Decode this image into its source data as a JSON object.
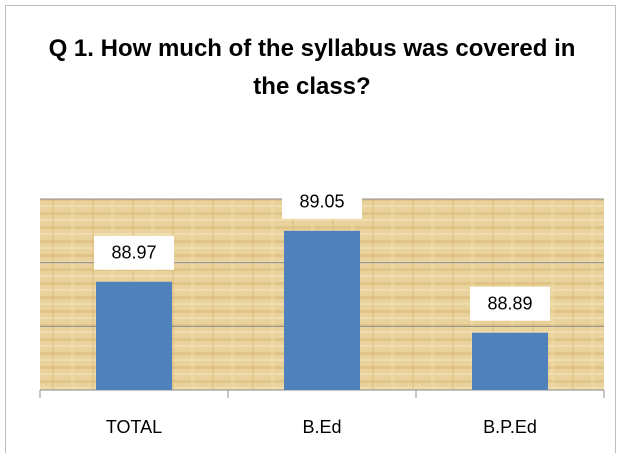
{
  "chart_data": {
    "type": "bar",
    "title": "Q 1. How much of the syllabus was covered in the class?",
    "categories": [
      "TOTAL",
      "B.Ed",
      "B.P.Ed"
    ],
    "values": [
      88.97,
      89.05,
      88.89
    ],
    "color": "#4f81bd",
    "ylim": [
      88.8,
      89.1
    ],
    "yticks": [
      88.8,
      88.9,
      89.0,
      89.1
    ],
    "grid": true
  }
}
